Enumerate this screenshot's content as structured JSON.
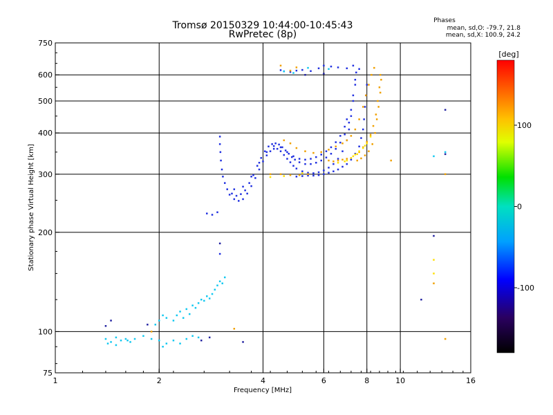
{
  "title": "Tromsø 20150329 10:44:00-10:45:43",
  "subtitle": "RwPretec (8p)",
  "phases_box": {
    "heading": "Phases",
    "line1": "mean, sd,O: -79.7, 21.8",
    "line2": "mean, sd,X: 100.9, 24.2"
  },
  "chart_data": {
    "type": "scatter",
    "xlabel": "Frequency [MHz]",
    "ylabel": "Stationary phase Virtual Height [km]",
    "x_scale": "log",
    "y_scale": "log",
    "xlim": [
      1,
      16
    ],
    "ylim": [
      75,
      750
    ],
    "x_ticks": [
      1,
      2,
      4,
      6,
      8,
      10,
      16
    ],
    "x_tick_labels": [
      "1",
      "2",
      "4",
      "6",
      "8",
      "10",
      "16"
    ],
    "y_ticks": [
      75,
      100,
      200,
      300,
      400,
      500,
      600,
      750
    ],
    "y_tick_labels": [
      "75",
      "100",
      "200",
      "300",
      "400",
      "500",
      "600",
      "750"
    ],
    "grid": true,
    "grid_x": [
      2,
      4,
      6,
      8,
      10
    ],
    "grid_y": [
      100,
      200,
      300,
      400,
      500,
      600
    ],
    "colorbar": {
      "label": "[deg]",
      "range": [
        -180,
        180
      ],
      "ticks": [
        100,
        0,
        -100
      ],
      "tick_labels": [
        "100",
        "0",
        "-100"
      ],
      "colormap": "rainbow"
    },
    "series": [
      {
        "polarity": "O",
        "color": "#2030e0",
        "points": [
          [
            3.0,
            390
          ],
          [
            3.0,
            370
          ],
          [
            3.01,
            350
          ],
          [
            3.02,
            330
          ],
          [
            3.04,
            310
          ],
          [
            3.06,
            295
          ],
          [
            3.1,
            282
          ],
          [
            3.15,
            270
          ],
          [
            3.2,
            260
          ],
          [
            3.3,
            252
          ],
          [
            3.4,
            249
          ],
          [
            3.5,
            252
          ],
          [
            3.6,
            262
          ],
          [
            3.7,
            276
          ],
          [
            3.8,
            292
          ],
          [
            3.9,
            310
          ],
          [
            4.0,
            328
          ],
          [
            4.1,
            342
          ],
          [
            4.2,
            352
          ],
          [
            4.3,
            358
          ],
          [
            4.4,
            358
          ],
          [
            4.5,
            352
          ],
          [
            4.6,
            343
          ],
          [
            4.7,
            334
          ],
          [
            4.8,
            326
          ],
          [
            4.9,
            318
          ],
          [
            5.0,
            312
          ],
          [
            5.2,
            306
          ],
          [
            5.4,
            303
          ],
          [
            5.6,
            302
          ],
          [
            5.8,
            304
          ],
          [
            6.0,
            308
          ],
          [
            6.2,
            314
          ],
          [
            6.4,
            322
          ],
          [
            6.6,
            334
          ],
          [
            6.8,
            352
          ],
          [
            7.0,
            380
          ],
          [
            7.1,
            410
          ],
          [
            7.2,
            450
          ],
          [
            7.3,
            500
          ],
          [
            7.4,
            560
          ],
          [
            7.45,
            610
          ],
          [
            3.25,
            262
          ],
          [
            3.35,
            258
          ],
          [
            3.45,
            261
          ],
          [
            3.55,
            268
          ],
          [
            3.65,
            282
          ],
          [
            3.75,
            298
          ],
          [
            3.85,
            318
          ],
          [
            3.95,
            336
          ],
          [
            4.05,
            352
          ],
          [
            4.15,
            364
          ],
          [
            4.25,
            370
          ],
          [
            4.35,
            372
          ],
          [
            4.45,
            369
          ],
          [
            4.55,
            362
          ],
          [
            4.65,
            354
          ],
          [
            4.75,
            346
          ],
          [
            4.85,
            338
          ],
          [
            4.95,
            332
          ],
          [
            5.1,
            326
          ],
          [
            5.3,
            322
          ],
          [
            5.5,
            322
          ],
          [
            5.7,
            325
          ],
          [
            5.9,
            330
          ],
          [
            6.1,
            337
          ],
          [
            6.3,
            346
          ],
          [
            6.5,
            358
          ],
          [
            6.7,
            374
          ],
          [
            6.9,
            396
          ],
          [
            7.1,
            430
          ],
          [
            7.2,
            470
          ],
          [
            7.3,
            520
          ],
          [
            7.4,
            580
          ],
          [
            3.3,
            270
          ],
          [
            3.5,
            275
          ],
          [
            3.7,
            295
          ],
          [
            3.9,
            325
          ],
          [
            4.1,
            350
          ],
          [
            4.3,
            365
          ],
          [
            4.5,
            362
          ],
          [
            4.7,
            350
          ],
          [
            4.9,
            340
          ],
          [
            5.1,
            334
          ],
          [
            5.3,
            332
          ],
          [
            5.5,
            334
          ],
          [
            5.7,
            338
          ],
          [
            5.9,
            344
          ],
          [
            6.1,
            352
          ],
          [
            6.3,
            362
          ],
          [
            6.5,
            375
          ],
          [
            6.7,
            392
          ],
          [
            6.9,
            418
          ],
          [
            7.0,
            440
          ],
          [
            5.0,
            295
          ],
          [
            5.2,
            296
          ],
          [
            5.4,
            297
          ],
          [
            5.6,
            297
          ],
          [
            5.8,
            298
          ],
          [
            6.0,
            300
          ],
          [
            6.2,
            303
          ],
          [
            6.4,
            306
          ],
          [
            6.6,
            310
          ],
          [
            6.8,
            316
          ],
          [
            7.0,
            322
          ],
          [
            7.2,
            332
          ],
          [
            7.4,
            346
          ],
          [
            7.6,
            364
          ],
          [
            7.7,
            386
          ],
          [
            7.8,
            410
          ],
          [
            7.85,
            440
          ],
          [
            7.9,
            480
          ],
          [
            7.95,
            520
          ],
          [
            8.0,
            560
          ],
          [
            4.5,
            620
          ],
          [
            4.6,
            615
          ],
          [
            4.8,
            612
          ],
          [
            5.0,
            618
          ],
          [
            5.2,
            621
          ],
          [
            5.5,
            616
          ],
          [
            5.8,
            628
          ],
          [
            6.0,
            640
          ],
          [
            6.3,
            636
          ],
          [
            6.6,
            632
          ],
          [
            7.0,
            628
          ],
          [
            7.3,
            640
          ],
          [
            7.6,
            625
          ],
          [
            2.75,
            228
          ],
          [
            2.85,
            226
          ],
          [
            2.95,
            230
          ],
          [
            3.0,
            172
          ]
        ]
      },
      {
        "polarity": "X",
        "color": "#f0a000",
        "points": [
          [
            4.6,
            380
          ],
          [
            4.8,
            372
          ],
          [
            5.0,
            360
          ],
          [
            5.3,
            352
          ],
          [
            5.6,
            348
          ],
          [
            5.9,
            350
          ],
          [
            6.2,
            356
          ],
          [
            6.5,
            364
          ],
          [
            6.8,
            372
          ],
          [
            7.0,
            380
          ],
          [
            7.2,
            392
          ],
          [
            7.4,
            410
          ],
          [
            7.6,
            440
          ],
          [
            7.8,
            480
          ],
          [
            7.95,
            520
          ],
          [
            8.1,
            560
          ],
          [
            8.25,
            600
          ],
          [
            8.4,
            630
          ],
          [
            7.5,
            330
          ],
          [
            7.7,
            335
          ],
          [
            7.9,
            342
          ],
          [
            8.1,
            352
          ],
          [
            8.3,
            370
          ],
          [
            8.45,
            400
          ],
          [
            8.55,
            440
          ],
          [
            8.65,
            480
          ],
          [
            8.75,
            530
          ],
          [
            8.8,
            580
          ],
          [
            7.6,
            350
          ],
          [
            7.8,
            362
          ],
          [
            8.0,
            376
          ],
          [
            8.2,
            395
          ],
          [
            8.35,
            420
          ],
          [
            8.5,
            455
          ],
          [
            8.6,
            500
          ],
          [
            8.7,
            550
          ],
          [
            8.75,
            600
          ],
          [
            4.2,
            300
          ],
          [
            4.5,
            300
          ],
          [
            4.8,
            298
          ],
          [
            5.1,
            298
          ],
          [
            5.4,
            300
          ],
          [
            6.2,
            330
          ],
          [
            6.4,
            328
          ],
          [
            6.6,
            330
          ],
          [
            6.8,
            332
          ],
          [
            7.0,
            334
          ],
          [
            4.5,
            640
          ],
          [
            5.0,
            632
          ],
          [
            4.8,
            618
          ],
          [
            9.4,
            330
          ],
          [
            13.5,
            300
          ],
          [
            13.5,
            95
          ],
          [
            12.5,
            140
          ],
          [
            3.3,
            102
          ],
          [
            1.9,
            100
          ]
        ]
      },
      {
        "polarity": "O",
        "color": "#ffe000",
        "points": [
          [
            7.0,
            330
          ],
          [
            7.2,
            336
          ],
          [
            7.4,
            344
          ],
          [
            7.6,
            352
          ],
          [
            7.8,
            360
          ],
          [
            8.0,
            372
          ],
          [
            8.2,
            390
          ],
          [
            7.3,
            340
          ],
          [
            7.5,
            345
          ],
          [
            7.9,
            366
          ],
          [
            6.9,
            328
          ],
          [
            6.6,
            325
          ],
          [
            12.5,
            165
          ],
          [
            12.5,
            150
          ],
          [
            4.2,
            294
          ],
          [
            4.6,
            296
          ],
          [
            5.2,
            302
          ]
        ]
      },
      {
        "polarity": "O",
        "color": "#10c8f0",
        "points": [
          [
            1.4,
            95
          ],
          [
            1.45,
            93
          ],
          [
            1.5,
            96
          ],
          [
            1.55,
            94
          ],
          [
            1.6,
            95
          ],
          [
            1.65,
            93
          ],
          [
            1.7,
            95
          ],
          [
            1.8,
            97
          ],
          [
            1.9,
            95
          ],
          [
            2.0,
            94
          ],
          [
            2.05,
            90
          ],
          [
            2.1,
            92
          ],
          [
            2.2,
            94
          ],
          [
            2.3,
            92
          ],
          [
            2.4,
            95
          ],
          [
            2.5,
            97
          ],
          [
            2.6,
            96
          ],
          [
            1.42,
            92
          ],
          [
            1.5,
            91
          ],
          [
            1.62,
            94
          ],
          [
            1.95,
            105
          ],
          [
            2.0,
            108
          ],
          [
            2.05,
            112
          ],
          [
            2.1,
            110
          ],
          [
            2.2,
            108
          ],
          [
            2.25,
            112
          ],
          [
            2.3,
            115
          ],
          [
            2.4,
            117
          ],
          [
            2.5,
            120
          ],
          [
            2.55,
            118
          ],
          [
            2.6,
            122
          ],
          [
            2.65,
            125
          ],
          [
            2.7,
            124
          ],
          [
            2.8,
            126
          ],
          [
            2.85,
            130
          ],
          [
            2.9,
            134
          ],
          [
            2.95,
            138
          ],
          [
            3.0,
            142
          ],
          [
            3.05,
            140
          ],
          [
            3.1,
            146
          ],
          [
            2.35,
            110
          ],
          [
            2.45,
            113
          ],
          [
            2.75,
            128
          ],
          [
            4.6,
            615
          ],
          [
            4.9,
            608
          ],
          [
            5.4,
            630
          ],
          [
            6.2,
            625
          ],
          [
            12.5,
            340
          ],
          [
            13.5,
            350
          ]
        ]
      },
      {
        "polarity": "X",
        "color": "#2020a0",
        "points": [
          [
            1.4,
            104
          ],
          [
            1.45,
            108
          ],
          [
            1.85,
            105
          ],
          [
            2.65,
            94
          ],
          [
            2.8,
            96
          ],
          [
            3.5,
            93
          ],
          [
            11.5,
            125
          ],
          [
            12.5,
            195
          ],
          [
            13.5,
            470
          ],
          [
            13.5,
            345
          ],
          [
            3.0,
            185
          ],
          [
            5.3,
            600
          ],
          [
            6.0,
            605
          ]
        ]
      }
    ]
  }
}
